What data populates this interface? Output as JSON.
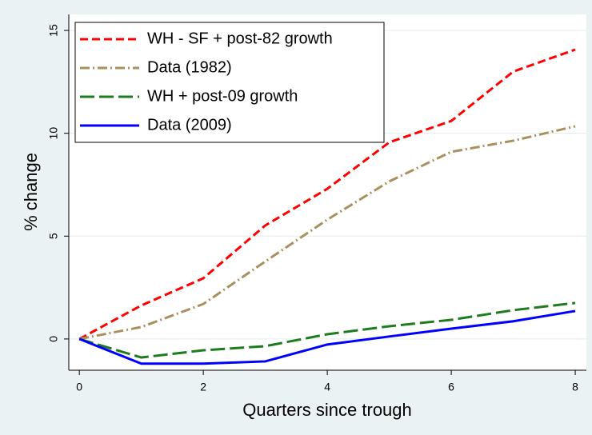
{
  "chart_data": {
    "type": "line",
    "x": [
      0,
      1,
      2,
      3,
      4,
      5,
      6,
      7,
      8
    ],
    "xlabel": "Quarters since trough",
    "ylabel": "% change",
    "xlim": [
      -0.17,
      8.18
    ],
    "xticks": [
      0,
      2,
      4,
      6,
      8
    ],
    "ylim": [
      -1.52,
      15.78
    ],
    "yticks": [
      0,
      5,
      10,
      15
    ],
    "grid": true,
    "legend": "upper left",
    "series": [
      {
        "name": "WH - SF + post-82 growth",
        "color": "#ff0000",
        "style": "dash",
        "values": [
          0,
          1.63,
          2.95,
          5.52,
          7.3,
          9.56,
          10.6,
          13.0,
          14.07
        ]
      },
      {
        "name": "Data (1982)",
        "color": "#a8915f",
        "style": "dashdot",
        "values": [
          0,
          0.58,
          1.7,
          3.77,
          5.8,
          7.66,
          9.1,
          9.64,
          10.34
        ]
      },
      {
        "name": "WH + post-09 growth",
        "color": "#1e7b1e",
        "style": "longdash",
        "values": [
          0,
          -0.9,
          -0.55,
          -0.35,
          0.23,
          0.62,
          0.93,
          1.4,
          1.75
        ]
      },
      {
        "name": "Data (2009)",
        "color": "#0000ff",
        "style": "solid",
        "values": [
          0,
          -1.2,
          -1.2,
          -1.09,
          -0.27,
          0.12,
          0.5,
          0.86,
          1.36
        ]
      }
    ]
  }
}
